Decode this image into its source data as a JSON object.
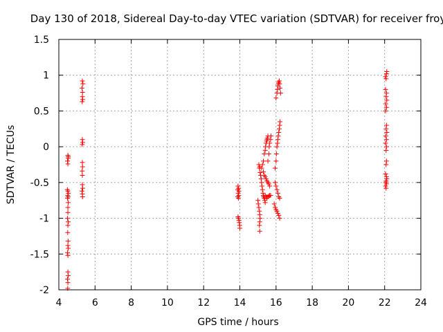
{
  "chart_data": {
    "type": "scatter",
    "title": "Day 130 of 2018, Sidereal Day-to-day VTEC variation (SDTVAR) for receiver froy",
    "xlabel": "GPS time / hours",
    "ylabel": "SDTVAR / TECUs",
    "xlim": [
      4,
      24
    ],
    "ylim": [
      -2,
      1.5
    ],
    "xticks": [
      4,
      6,
      8,
      10,
      12,
      14,
      16,
      18,
      20,
      22,
      24
    ],
    "xtick_labels": [
      "4",
      "6",
      "8",
      "10",
      "12",
      "14",
      "16",
      "18",
      "20",
      "22",
      "24"
    ],
    "yticks": [
      -2,
      -1.5,
      -1,
      -0.5,
      0,
      0.5,
      1,
      1.5
    ],
    "ytick_labels": [
      "-2",
      "-1.5",
      "-1",
      "-0.5",
      "0",
      "0.5",
      "1",
      "1.5"
    ],
    "grid": true,
    "marker": "+",
    "color": "#ff0000",
    "series": [
      {
        "name": "SDTVAR",
        "points": [
          [
            4.5,
            -0.12
          ],
          [
            4.52,
            -0.16
          ],
          [
            4.48,
            -0.2
          ],
          [
            4.5,
            -0.24
          ],
          [
            4.52,
            -0.14
          ],
          [
            4.47,
            -0.6
          ],
          [
            4.5,
            -0.62
          ],
          [
            4.53,
            -0.65
          ],
          [
            4.49,
            -0.68
          ],
          [
            4.51,
            -0.7
          ],
          [
            4.48,
            -0.72
          ],
          [
            4.52,
            -0.78
          ],
          [
            4.5,
            -0.85
          ],
          [
            4.5,
            -0.92
          ],
          [
            4.48,
            -1.0
          ],
          [
            4.52,
            -1.05
          ],
          [
            4.5,
            -1.1
          ],
          [
            4.49,
            -1.2
          ],
          [
            4.51,
            -1.32
          ],
          [
            4.5,
            -1.38
          ],
          [
            4.52,
            -1.42
          ],
          [
            4.48,
            -1.48
          ],
          [
            4.5,
            -1.52
          ],
          [
            4.5,
            -1.75
          ],
          [
            4.52,
            -1.8
          ],
          [
            4.48,
            -1.85
          ],
          [
            4.5,
            -1.9
          ],
          [
            4.49,
            -1.98
          ],
          [
            5.3,
            0.92
          ],
          [
            5.33,
            0.88
          ],
          [
            5.28,
            0.82
          ],
          [
            5.31,
            0.76
          ],
          [
            5.3,
            0.7
          ],
          [
            5.32,
            0.66
          ],
          [
            5.29,
            0.63
          ],
          [
            5.3,
            0.1
          ],
          [
            5.32,
            0.06
          ],
          [
            5.29,
            0.03
          ],
          [
            5.3,
            -0.22
          ],
          [
            5.31,
            -0.28
          ],
          [
            5.29,
            -0.34
          ],
          [
            5.3,
            -0.4
          ],
          [
            5.3,
            -0.53
          ],
          [
            5.32,
            -0.58
          ],
          [
            5.28,
            -0.62
          ],
          [
            5.3,
            -0.66
          ],
          [
            5.31,
            -0.7
          ],
          [
            13.9,
            -0.55
          ],
          [
            13.93,
            -0.58
          ],
          [
            13.88,
            -0.6
          ],
          [
            13.95,
            -0.62
          ],
          [
            13.91,
            -0.65
          ],
          [
            13.94,
            -0.68
          ],
          [
            13.89,
            -0.7
          ],
          [
            13.92,
            -0.72
          ],
          [
            13.9,
            -0.98
          ],
          [
            13.93,
            -1.0
          ],
          [
            13.95,
            -1.03
          ],
          [
            13.97,
            -1.06
          ],
          [
            13.99,
            -1.1
          ],
          [
            14.0,
            -1.14
          ],
          [
            15.05,
            -0.25
          ],
          [
            15.08,
            -0.3
          ],
          [
            15.1,
            -0.28
          ],
          [
            15.12,
            -0.36
          ],
          [
            15.15,
            -0.4
          ],
          [
            15.18,
            -0.45
          ],
          [
            15.2,
            -0.5
          ],
          [
            15.22,
            -0.55
          ],
          [
            15.25,
            -0.6
          ],
          [
            15.28,
            -0.65
          ],
          [
            15.3,
            -0.68
          ],
          [
            15.32,
            -0.7
          ],
          [
            15.35,
            -0.72
          ],
          [
            15.38,
            -0.75
          ],
          [
            15.4,
            -0.78
          ],
          [
            15.0,
            -0.75
          ],
          [
            15.02,
            -0.8
          ],
          [
            15.05,
            -0.85
          ],
          [
            15.08,
            -0.9
          ],
          [
            15.1,
            -0.95
          ],
          [
            15.12,
            -1.0
          ],
          [
            15.1,
            -1.05
          ],
          [
            15.08,
            -1.1
          ],
          [
            15.1,
            -1.18
          ],
          [
            15.2,
            -0.3
          ],
          [
            15.25,
            -0.25
          ],
          [
            15.3,
            -0.2
          ],
          [
            15.35,
            -0.1
          ],
          [
            15.4,
            -0.05
          ],
          [
            15.42,
            0.0
          ],
          [
            15.45,
            0.05
          ],
          [
            15.48,
            0.08
          ],
          [
            15.5,
            0.1
          ],
          [
            15.52,
            0.12
          ],
          [
            15.55,
            0.15
          ],
          [
            15.3,
            -0.35
          ],
          [
            15.35,
            -0.4
          ],
          [
            15.4,
            -0.42
          ],
          [
            15.45,
            -0.45
          ],
          [
            15.5,
            -0.48
          ],
          [
            15.55,
            -0.5
          ],
          [
            15.6,
            -0.52
          ],
          [
            15.65,
            -0.55
          ],
          [
            15.4,
            -0.68
          ],
          [
            15.45,
            -0.7
          ],
          [
            15.5,
            -0.72
          ],
          [
            15.55,
            -0.7
          ],
          [
            15.6,
            -0.69
          ],
          [
            15.65,
            -0.68
          ],
          [
            15.7,
            -0.68
          ],
          [
            15.55,
            -0.2
          ],
          [
            15.6,
            -0.1
          ],
          [
            15.62,
            0.0
          ],
          [
            15.65,
            0.05
          ],
          [
            15.7,
            0.1
          ],
          [
            15.72,
            0.15
          ],
          [
            15.9,
            -0.8
          ],
          [
            15.95,
            -0.85
          ],
          [
            16.0,
            -0.88
          ],
          [
            16.05,
            -0.9
          ],
          [
            16.1,
            -0.93
          ],
          [
            16.15,
            -0.96
          ],
          [
            16.2,
            -1.0
          ],
          [
            15.95,
            -0.3
          ],
          [
            16.0,
            -0.2
          ],
          [
            16.02,
            -0.1
          ],
          [
            16.05,
            0.0
          ],
          [
            16.08,
            0.05
          ],
          [
            16.1,
            0.1
          ],
          [
            16.12,
            0.15
          ],
          [
            16.15,
            0.2
          ],
          [
            16.18,
            0.25
          ],
          [
            16.2,
            0.3
          ],
          [
            16.22,
            0.35
          ],
          [
            15.95,
            -0.5
          ],
          [
            16.0,
            -0.55
          ],
          [
            16.05,
            -0.6
          ],
          [
            16.1,
            -0.65
          ],
          [
            16.15,
            -0.7
          ],
          [
            16.2,
            -0.72
          ],
          [
            16.0,
            0.68
          ],
          [
            16.05,
            0.75
          ],
          [
            16.08,
            0.8
          ],
          [
            16.1,
            0.85
          ],
          [
            16.12,
            0.88
          ],
          [
            16.15,
            0.9
          ],
          [
            16.18,
            0.92
          ],
          [
            16.2,
            0.88
          ],
          [
            16.22,
            0.82
          ],
          [
            16.25,
            0.75
          ],
          [
            22.05,
            0.98
          ],
          [
            22.1,
            1.02
          ],
          [
            22.12,
            1.05
          ],
          [
            22.08,
            0.95
          ],
          [
            22.05,
            0.8
          ],
          [
            22.1,
            0.75
          ],
          [
            22.08,
            0.7
          ],
          [
            22.12,
            0.65
          ],
          [
            22.06,
            0.6
          ],
          [
            22.1,
            0.55
          ],
          [
            22.05,
            0.5
          ],
          [
            22.1,
            0.3
          ],
          [
            22.08,
            0.25
          ],
          [
            22.12,
            0.2
          ],
          [
            22.06,
            0.15
          ],
          [
            22.1,
            0.1
          ],
          [
            22.05,
            0.05
          ],
          [
            22.1,
            0.0
          ],
          [
            22.08,
            -0.05
          ],
          [
            22.1,
            -0.2
          ],
          [
            22.08,
            -0.25
          ],
          [
            22.05,
            -0.38
          ],
          [
            22.1,
            -0.42
          ],
          [
            22.12,
            -0.45
          ],
          [
            22.08,
            -0.48
          ],
          [
            22.06,
            -0.5
          ],
          [
            22.1,
            -0.52
          ],
          [
            22.05,
            -0.55
          ],
          [
            22.08,
            -0.58
          ]
        ]
      }
    ]
  }
}
